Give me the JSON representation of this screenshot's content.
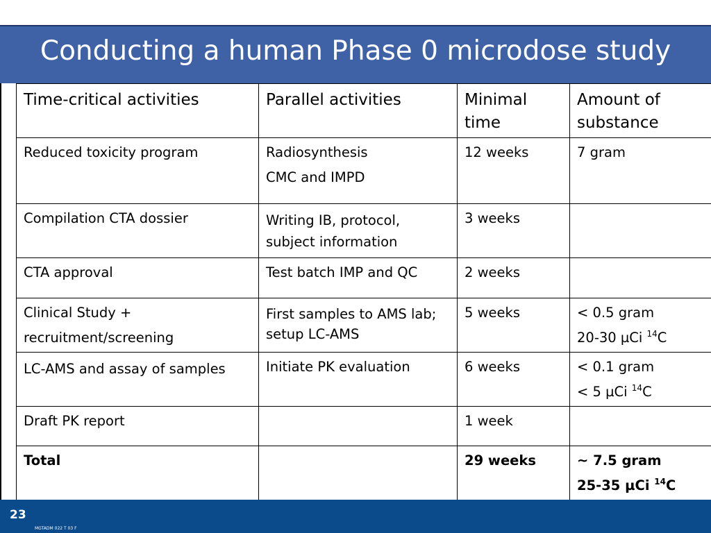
{
  "slide": {
    "title": "Conducting a human Phase 0 microdose study"
  },
  "table": {
    "headers": [
      "Time-critical activities",
      "Parallel activities",
      "Minimal time",
      "Amount of substance"
    ],
    "rows": [
      {
        "activity": "Reduced toxicity program",
        "parallel": [
          "Radiosynthesis",
          "CMC and IMPD"
        ],
        "time": "12 weeks",
        "amount": [
          "7 gram"
        ]
      },
      {
        "activity": "Compilation CTA dossier",
        "parallel": [
          "Writing IB, protocol, subject information"
        ],
        "time": "3 weeks",
        "amount": []
      },
      {
        "activity": "CTA approval",
        "parallel": [
          "Test batch IMP and QC"
        ],
        "time": "2 weeks",
        "amount": []
      },
      {
        "activity": [
          "Clinical Study +",
          "recruitment/screening"
        ],
        "parallel": [
          "First samples to AMS lab; setup LC-AMS"
        ],
        "time": "5 weeks",
        "amount": [
          "< 0.5 gram",
          "20-30 µCi ",
          "14",
          "C"
        ]
      },
      {
        "activity": "LC-AMS and assay of samples",
        "parallel": [
          "Initiate PK evaluation"
        ],
        "time": "6 weeks",
        "amount": [
          "< 0.1 gram",
          "< 5 µCi ",
          "14",
          "C"
        ]
      },
      {
        "activity": "Draft PK report",
        "parallel": [],
        "time": "1 week",
        "amount": []
      }
    ],
    "total": {
      "label": "Total",
      "time": "29 weeks",
      "amount_line1": "~ 7.5 gram",
      "amount_line2_prefix": "25-35 µCi ",
      "amount_line2_sup": "14",
      "amount_line2_suffix": "C"
    }
  },
  "footer": {
    "page_number": "23",
    "doc_code": "MGTADM 022 T 03 F"
  }
}
